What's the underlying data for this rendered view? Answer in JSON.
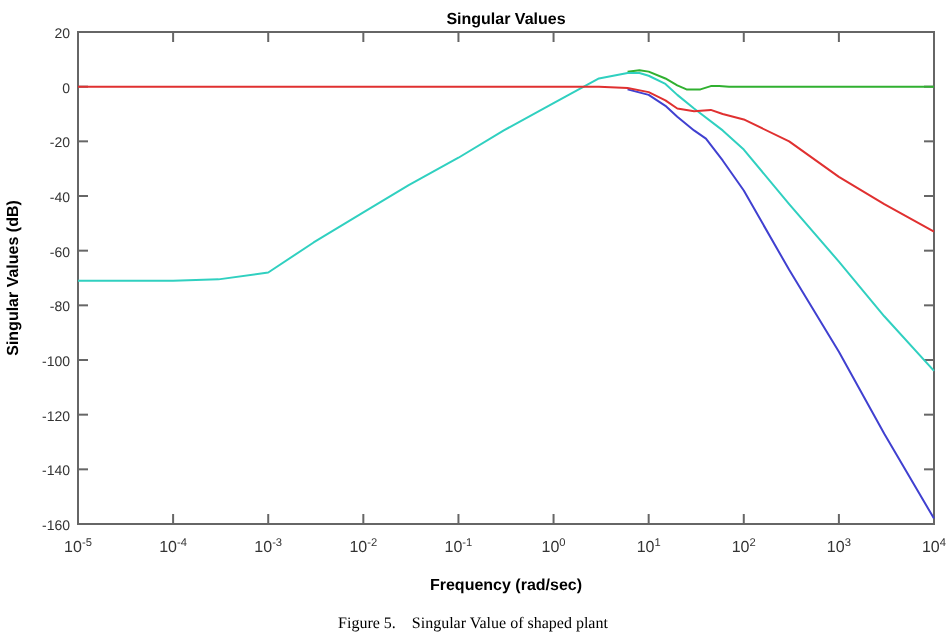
{
  "chart_data": {
    "type": "line",
    "title": "Singular Values",
    "xlabel": "Frequency (rad/sec)",
    "ylabel": "Singular Values (dB)",
    "annotations": [
      "Figure 5.    Singular Value of shaped plant"
    ],
    "log": "x",
    "grid": false,
    "marker": "none",
    "line_style": "solid",
    "xlim": [
      1e-05,
      10000
    ],
    "xticks": [
      {
        "value": 1e-05,
        "label": "10$^{-5}$"
      },
      {
        "value": 0.0001,
        "label": "10$^{-4}$"
      },
      {
        "value": 0.001,
        "label": "10$^{-3}$"
      },
      {
        "value": 0.01,
        "label": "10$^{-2}$"
      },
      {
        "value": 0.1,
        "label": "10$^{-1}$"
      },
      {
        "value": 1,
        "label": "10$^{0}$"
      },
      {
        "value": 10,
        "label": "10$^{1}$"
      },
      {
        "value": 100,
        "label": "10$^{2}$"
      },
      {
        "value": 1000,
        "label": "10$^{3}$"
      },
      {
        "value": 10000,
        "label": "10$^{4}$"
      }
    ],
    "ylim": [
      -160,
      20
    ],
    "yticks": [
      -160,
      -140,
      -120,
      -100,
      -80,
      -60,
      -40,
      -20,
      0,
      20
    ],
    "series": [
      {
        "color": "#30b030",
        "x": [
          6,
          8,
          10,
          15,
          20,
          25,
          35,
          45,
          55,
          70,
          100,
          1000,
          10000
        ],
        "values": [
          5.5,
          6,
          5.5,
          3,
          0.5,
          -1,
          -1,
          0.2,
          0.2,
          0,
          0,
          0,
          0
        ]
      },
      {
        "color": "#30d0c0",
        "x": [
          1e-05,
          0.0001,
          0.0003,
          0.001,
          0.003,
          0.01,
          0.03,
          0.1,
          0.3,
          1,
          3,
          6,
          8,
          10,
          15,
          20,
          30,
          60,
          100,
          300,
          1000,
          3000,
          10000
        ],
        "values": [
          -71,
          -71,
          -70.5,
          -68,
          -57,
          -46,
          -36,
          -26,
          -16,
          -6,
          3,
          5,
          5,
          4,
          1,
          -3,
          -8,
          -16,
          -23,
          -43,
          -64,
          -84,
          -104
        ]
      },
      {
        "color": "#4040d0",
        "x": [
          6,
          10,
          15,
          20,
          30,
          40,
          60,
          100,
          300,
          1000,
          3000,
          10000
        ],
        "values": [
          -1,
          -3,
          -7,
          -11,
          -16,
          -19,
          -27,
          -38,
          -67,
          -97,
          -127,
          -158
        ]
      },
      {
        "color": "#e03030",
        "x": [
          1e-05,
          1,
          3,
          6,
          10,
          15,
          20,
          30,
          45,
          60,
          100,
          300,
          1000,
          3000,
          10000
        ],
        "values": [
          0,
          0,
          0,
          -0.5,
          -2,
          -5,
          -8,
          -9,
          -8.5,
          -10,
          -12,
          -20,
          -33,
          -43,
          -53
        ]
      }
    ]
  }
}
